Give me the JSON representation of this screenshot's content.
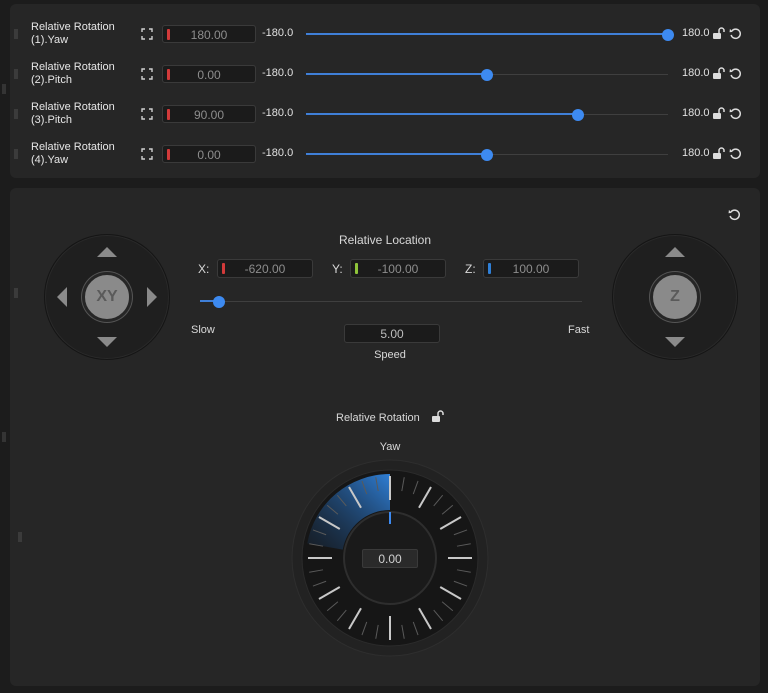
{
  "rotation_rows": [
    {
      "label_line1": "Relative Rotation",
      "label_line2": "(1).Yaw",
      "value": "180.00",
      "min": "-180.0",
      "max": "180.0",
      "level": 1.0
    },
    {
      "label_line1": "Relative Rotation",
      "label_line2": "(2).Pitch",
      "value": "0.00",
      "min": "-180.0",
      "max": "180.0",
      "level": 0.5
    },
    {
      "label_line1": "Relative Rotation",
      "label_line2": "(3).Pitch",
      "value": "90.00",
      "min": "-180.0",
      "max": "180.0",
      "level": 0.75
    },
    {
      "label_line1": "Relative Rotation",
      "label_line2": "(4).Yaw",
      "value": "0.00",
      "min": "-180.0",
      "max": "180.0",
      "level": 0.5
    }
  ],
  "joystick_xy": {
    "label": "XY"
  },
  "joystick_z": {
    "label": "Z"
  },
  "location": {
    "title": "Relative Location",
    "x_label": "X:",
    "x_value": "-620.00",
    "y_label": "Y:",
    "y_value": "-100.00",
    "z_label": "Z:",
    "z_value": "100.00",
    "slow_label": "Slow",
    "fast_label": "Fast",
    "speed_value": "5.00",
    "speed_label": "Speed",
    "speed_level": 0.05
  },
  "rotation_dial": {
    "title": "Relative Rotation",
    "axis_label": "Yaw",
    "value": "0.00"
  },
  "colors": {
    "accent": "#3d8af0",
    "x_axis": "#d23a3a",
    "y_axis": "#8fc43a",
    "z_axis": "#2f7fd6"
  },
  "icons": [
    "grip-icon",
    "expand-icon",
    "lock-icon",
    "reset-icon",
    "arrow-up-icon",
    "arrow-down-icon",
    "arrow-left-icon",
    "arrow-right-icon"
  ]
}
